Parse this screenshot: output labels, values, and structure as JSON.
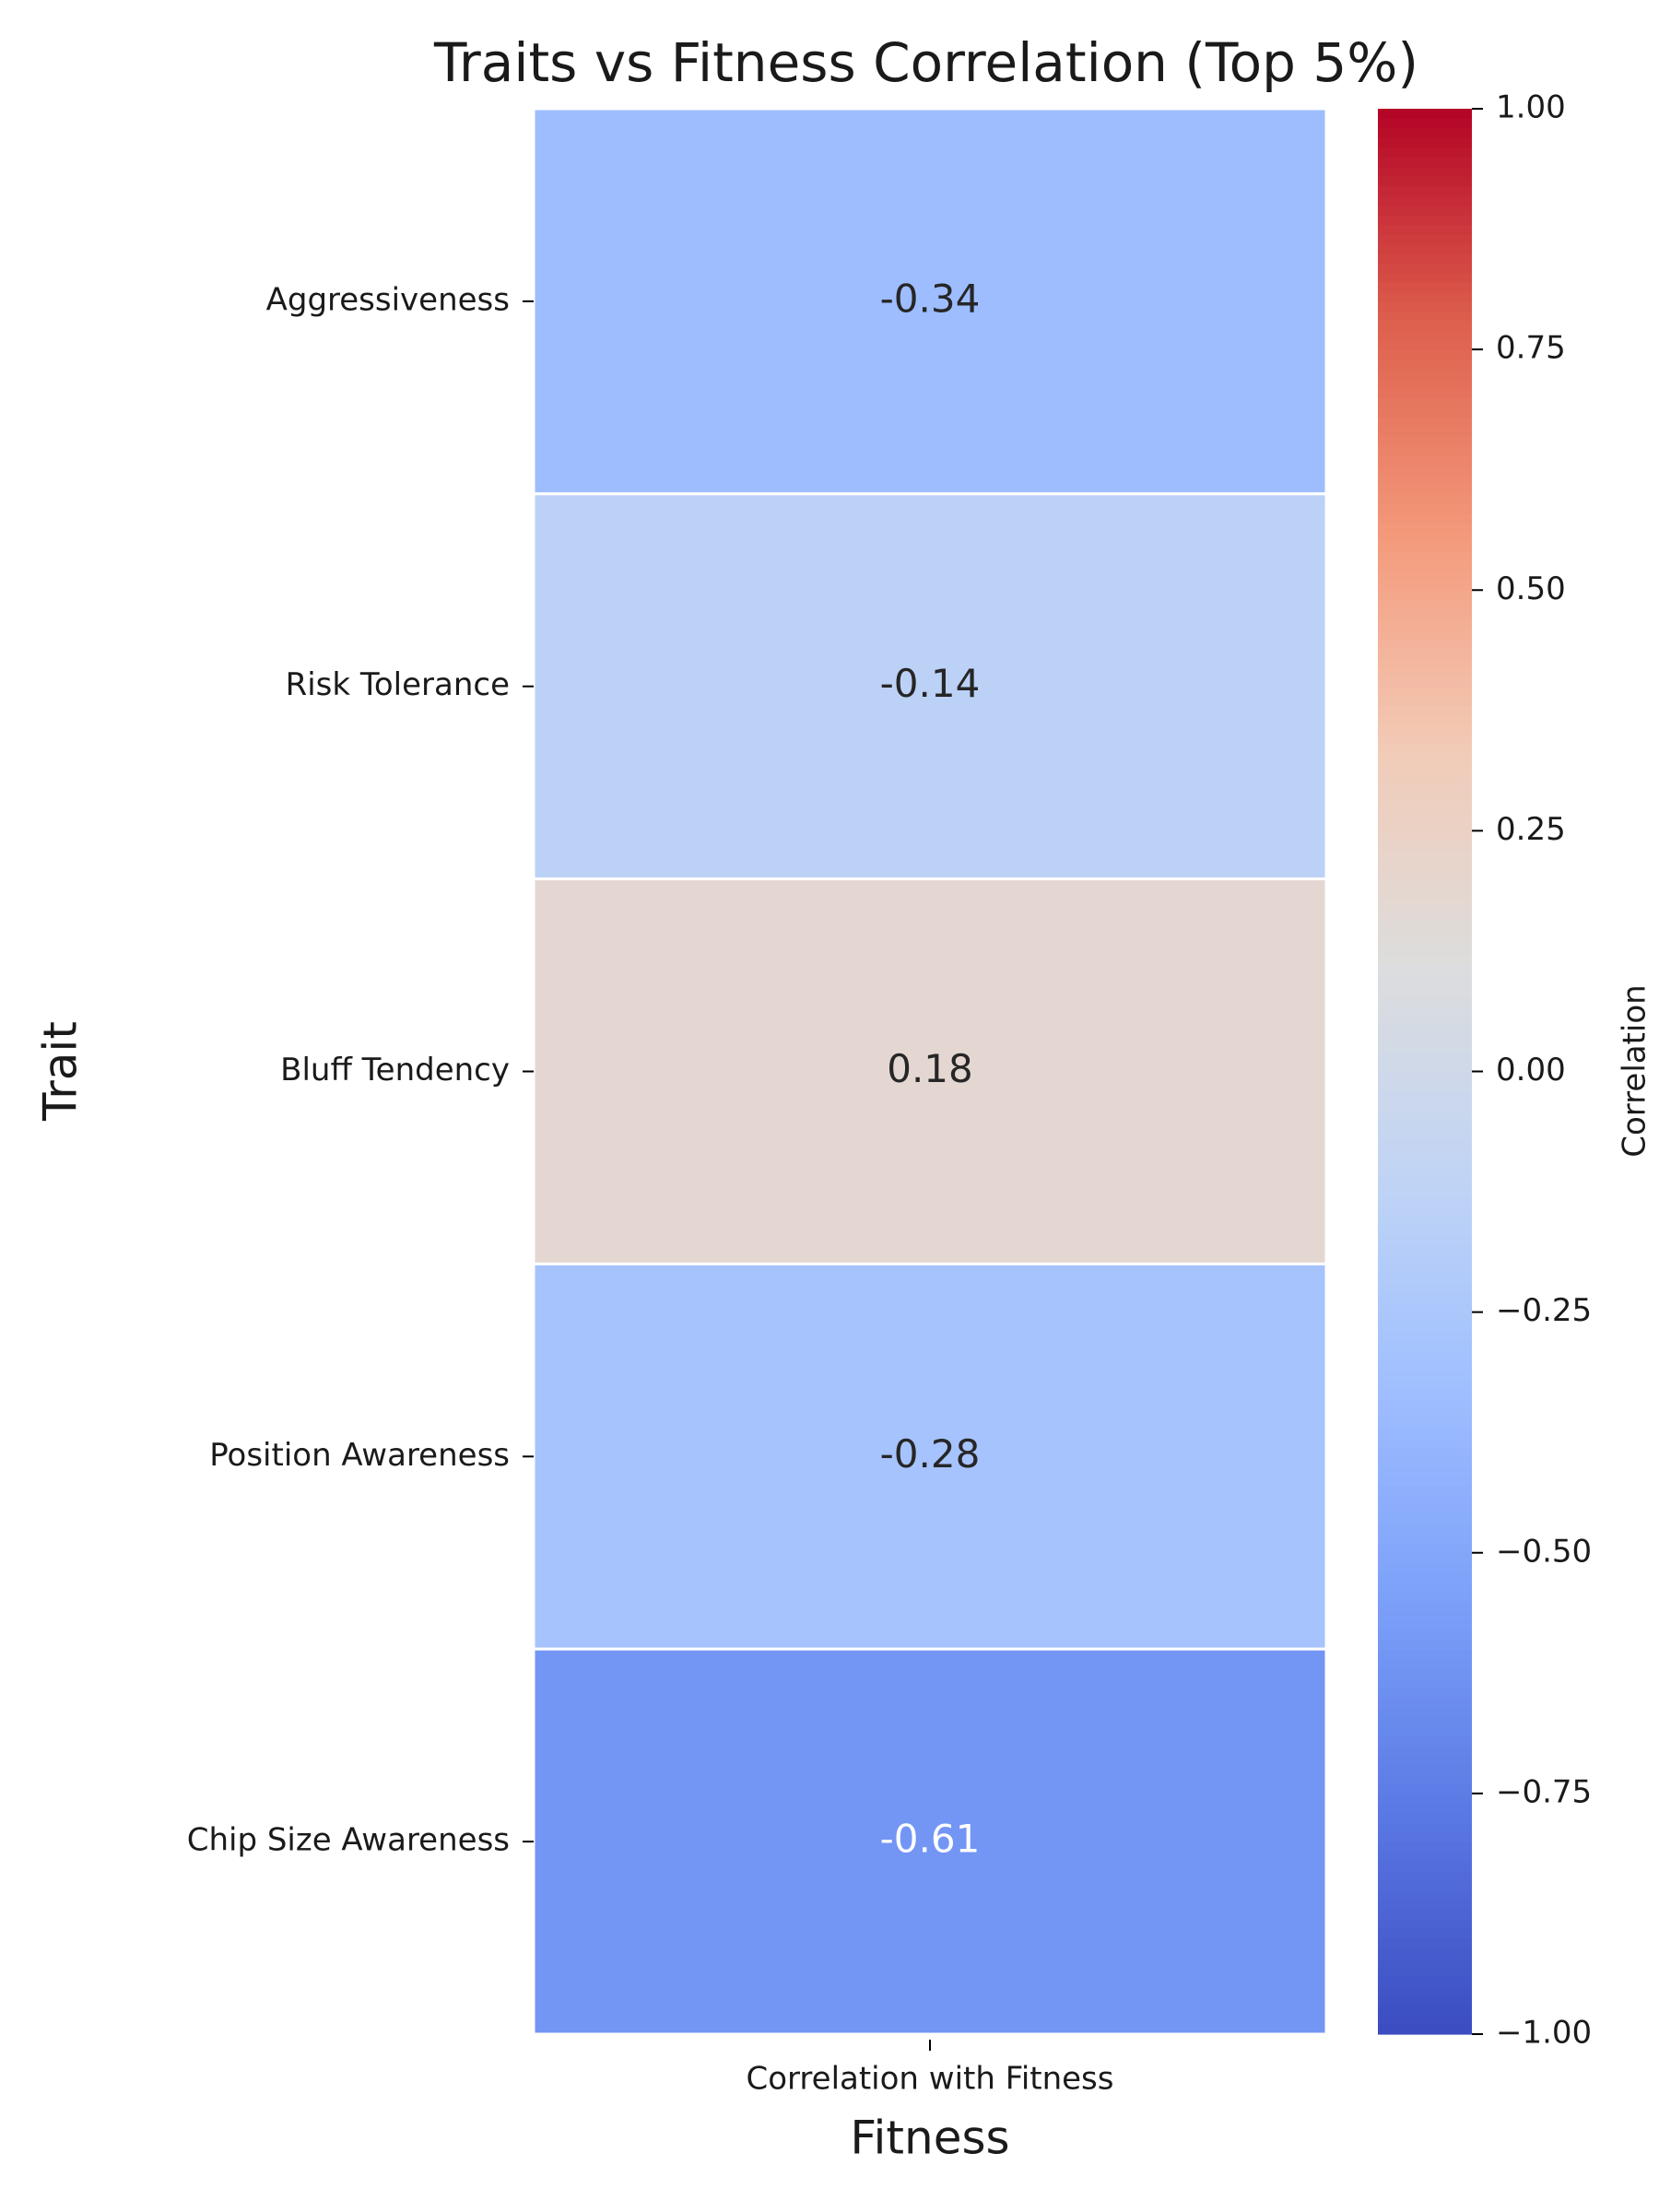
{
  "chart_data": {
    "type": "heatmap",
    "title": "Traits vs Fitness Correlation (Top 5%)",
    "x_label": "Fitness",
    "y_label": "Trait",
    "x_categories": [
      "Correlation with Fitness"
    ],
    "categories": [
      "Aggressiveness",
      "Risk Tolerance",
      "Bluff Tendency",
      "Position Awareness",
      "Chip Size Awareness"
    ],
    "values": [
      -0.34,
      -0.14,
      0.18,
      -0.28,
      -0.61
    ],
    "colormap": "coolwarm",
    "colorbar_label": "Correlation",
    "clim": [
      -1,
      1
    ],
    "cticks": [
      {
        "value": -1,
        "label": "−1.00"
      },
      {
        "value": -0.75,
        "label": "−0.75"
      },
      {
        "value": -0.5,
        "label": "−0.50"
      },
      {
        "value": -0.25,
        "label": "−0.25"
      },
      {
        "value": 0,
        "label": "0.00"
      },
      {
        "value": 0.25,
        "label": "0.25"
      },
      {
        "value": 0.5,
        "label": "0.50"
      },
      {
        "value": 0.75,
        "label": "0.75"
      },
      {
        "value": 1,
        "label": "1.00"
      }
    ]
  }
}
